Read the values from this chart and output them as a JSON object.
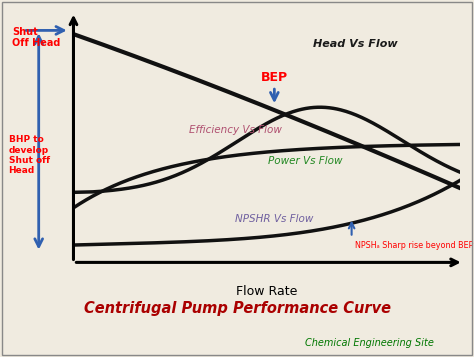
{
  "bg_color": "#f0ebe0",
  "plot_bg": "#f0ebe0",
  "title": "Centrifugal Pump Performance Curve",
  "title_color": "#aa0000",
  "subtitle": "Chemical Engineering Site",
  "subtitle_color": "#007700",
  "xlabel": "Flow Rate",
  "head_label": "Head Vs Flow",
  "efficiency_label": "Efficiency Vs Flow",
  "power_label": "Power Vs Flow",
  "npsh_label": "NPSHR Vs Flow",
  "shut_off_head_label": "Shut\nOff Head",
  "bhp_label": "BHP to\ndevelop\nShut off\nHead",
  "bep_label": "BEP",
  "npshr_rise_label": "NPSHₐ Sharp rise beyond BEP",
  "line_color": "#111111",
  "lw": 2.5,
  "arrow_color": "#3060b0"
}
